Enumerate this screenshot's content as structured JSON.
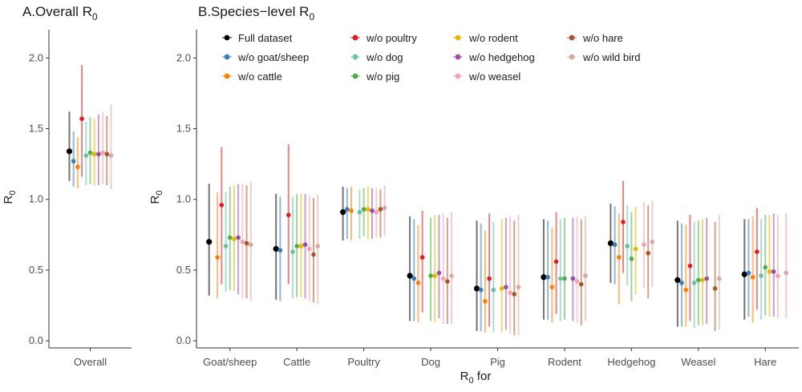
{
  "chart_data": [
    {
      "type": "pointrange",
      "panel": "A",
      "title": "A.Overall R",
      "title_sub": "0",
      "ylabel": "R",
      "ylabel_sub": "0",
      "xlabel": "",
      "ylim": [
        -0.05,
        2.2
      ],
      "yticks": [
        "0.0",
        "0.5",
        "1.0",
        "1.5",
        "2.0"
      ],
      "ytick_values": [
        0.0,
        0.5,
        1.0,
        1.5,
        2.0
      ],
      "categories": [
        "Overall"
      ],
      "grid": false,
      "series": [
        {
          "name": "Full dataset",
          "color": "#000000",
          "values": [
            [
              1.34,
              1.13,
              1.62
            ]
          ]
        },
        {
          "name": "w/o goat/sheep",
          "color": "#377EB8",
          "values": [
            [
              1.27,
              1.09,
              1.48
            ]
          ]
        },
        {
          "name": "w/o cattle",
          "color": "#FF7F00",
          "values": [
            [
              1.23,
              1.08,
              1.44
            ]
          ]
        },
        {
          "name": "w/o poultry",
          "color": "#E41A1C",
          "values": [
            [
              1.57,
              1.16,
              1.95
            ]
          ]
        },
        {
          "name": "w/o dog",
          "color": "#66C2A5",
          "values": [
            [
              1.31,
              1.1,
              1.55
            ]
          ]
        },
        {
          "name": "w/o pig",
          "color": "#4DAF4A",
          "values": [
            [
              1.33,
              1.11,
              1.58
            ]
          ]
        },
        {
          "name": "w/o rodent",
          "color": "#E6B800",
          "values": [
            [
              1.32,
              1.1,
              1.57
            ]
          ]
        },
        {
          "name": "w/o hedgehog",
          "color": "#984EA3",
          "values": [
            [
              1.32,
              1.1,
              1.6
            ]
          ]
        },
        {
          "name": "w/o weasel",
          "color": "#F4A0B0",
          "values": [
            [
              1.33,
              1.11,
              1.62
            ]
          ]
        },
        {
          "name": "w/o hare",
          "color": "#A65628",
          "values": [
            [
              1.32,
              1.1,
              1.59
            ]
          ]
        },
        {
          "name": "w/o wild bird",
          "color": "#D9A8A0",
          "values": [
            [
              1.31,
              1.07,
              1.67
            ]
          ]
        }
      ]
    },
    {
      "type": "pointrange",
      "panel": "B",
      "title": "B.Species−level R",
      "title_sub": "0",
      "ylabel": "R",
      "ylabel_sub": "0",
      "xlabel": "R",
      "xlabel_sub": "0",
      "xlabel_tail": " for",
      "ylim": [
        -0.05,
        2.2
      ],
      "yticks": [
        "0.0",
        "0.5",
        "1.0",
        "1.5",
        "2.0"
      ],
      "ytick_values": [
        0.0,
        0.5,
        1.0,
        1.5,
        2.0
      ],
      "categories": [
        "Goat/sheep",
        "Cattle",
        "Poultry",
        "Dog",
        "Pig",
        "Rodent",
        "Hedgehog",
        "Weasel",
        "Hare"
      ],
      "grid": false,
      "legend_position": "top-left",
      "series": [
        {
          "name": "Full dataset",
          "color": "#000000",
          "values": [
            [
              0.7,
              0.32,
              1.11
            ],
            [
              0.65,
              0.29,
              1.04
            ],
            [
              0.91,
              0.71,
              1.09
            ],
            [
              0.46,
              0.14,
              0.88
            ],
            [
              0.37,
              0.07,
              0.85
            ],
            [
              0.45,
              0.15,
              0.86
            ],
            [
              0.69,
              0.41,
              0.97
            ],
            [
              0.43,
              0.1,
              0.85
            ],
            [
              0.47,
              0.15,
              0.86
            ]
          ]
        },
        {
          "name": "w/o goat/sheep",
          "color": "#377EB8",
          "values": [
            [
              null,
              null,
              null
            ],
            [
              0.64,
              0.28,
              1.02
            ],
            [
              0.93,
              0.72,
              1.08
            ],
            [
              0.44,
              0.14,
              0.86
            ],
            [
              0.36,
              0.07,
              0.83
            ],
            [
              0.45,
              0.15,
              0.85
            ],
            [
              0.68,
              0.4,
              0.95
            ],
            [
              0.41,
              0.1,
              0.83
            ],
            [
              0.48,
              0.17,
              0.86
            ]
          ]
        },
        {
          "name": "w/o cattle",
          "color": "#FF7F00",
          "values": [
            [
              0.59,
              0.3,
              1.05
            ],
            [
              null,
              null,
              null
            ],
            [
              0.92,
              0.71,
              1.09
            ],
            [
              0.41,
              0.13,
              0.82
            ],
            [
              0.28,
              0.06,
              0.78
            ],
            [
              0.38,
              0.13,
              0.8
            ],
            [
              0.59,
              0.26,
              0.9
            ],
            [
              0.36,
              0.1,
              0.82
            ],
            [
              0.45,
              0.13,
              0.88
            ]
          ]
        },
        {
          "name": "w/o poultry",
          "color": "#E41A1C",
          "values": [
            [
              0.96,
              0.4,
              1.37
            ],
            [
              0.89,
              0.4,
              1.39
            ],
            [
              null,
              null,
              null
            ],
            [
              0.59,
              0.2,
              0.92
            ],
            [
              0.44,
              0.1,
              0.9
            ],
            [
              0.56,
              0.19,
              0.91
            ],
            [
              0.84,
              0.48,
              1.13
            ],
            [
              0.53,
              0.14,
              0.89
            ],
            [
              0.63,
              0.22,
              0.94
            ]
          ]
        },
        {
          "name": "w/o dog",
          "color": "#66C2A5",
          "values": [
            [
              0.67,
              0.35,
              1.05
            ],
            [
              0.63,
              0.3,
              1.02
            ],
            [
              0.91,
              0.72,
              1.07
            ],
            [
              null,
              null,
              null
            ],
            [
              0.36,
              0.06,
              0.84
            ],
            [
              0.44,
              0.14,
              0.86
            ],
            [
              0.67,
              0.39,
              0.96
            ],
            [
              0.41,
              0.09,
              0.84
            ],
            [
              0.46,
              0.15,
              0.86
            ]
          ]
        },
        {
          "name": "w/o pig",
          "color": "#4DAF4A",
          "values": [
            [
              0.73,
              0.36,
              1.09
            ],
            [
              0.67,
              0.31,
              1.04
            ],
            [
              0.93,
              0.74,
              1.08
            ],
            [
              0.46,
              0.14,
              0.87
            ],
            [
              null,
              null,
              null
            ],
            [
              0.44,
              0.15,
              0.87
            ],
            [
              0.58,
              0.28,
              0.91
            ],
            [
              0.43,
              0.11,
              0.85
            ],
            [
              0.52,
              0.18,
              0.89
            ]
          ]
        },
        {
          "name": "w/o rodent",
          "color": "#E6B800",
          "values": [
            [
              0.72,
              0.35,
              1.1
            ],
            [
              0.67,
              0.31,
              1.04
            ],
            [
              0.93,
              0.72,
              1.09
            ],
            [
              0.46,
              0.13,
              0.89
            ],
            [
              0.37,
              0.06,
              0.86
            ],
            [
              null,
              null,
              null
            ],
            [
              0.65,
              0.33,
              0.95
            ],
            [
              0.43,
              0.11,
              0.86
            ],
            [
              0.49,
              0.17,
              0.89
            ]
          ]
        },
        {
          "name": "w/o hedgehog",
          "color": "#984EA3",
          "values": [
            [
              0.73,
              0.33,
              1.11
            ],
            [
              0.68,
              0.3,
              1.04
            ],
            [
              0.92,
              0.72,
              1.08
            ],
            [
              0.48,
              0.16,
              0.89
            ],
            [
              0.38,
              0.08,
              0.87
            ],
            [
              0.44,
              0.14,
              0.87
            ],
            [
              null,
              null,
              null
            ],
            [
              0.44,
              0.12,
              0.87
            ],
            [
              0.49,
              0.17,
              0.9
            ]
          ]
        },
        {
          "name": "w/o weasel",
          "color": "#F4A0B0",
          "values": [
            [
              0.7,
              0.3,
              1.11
            ],
            [
              0.65,
              0.28,
              1.03
            ],
            [
              0.91,
              0.73,
              1.08
            ],
            [
              0.44,
              0.12,
              0.9
            ],
            [
              0.34,
              0.05,
              0.88
            ],
            [
              0.42,
              0.13,
              0.88
            ],
            [
              0.68,
              0.37,
              0.98
            ],
            [
              null,
              null,
              null
            ],
            [
              0.46,
              0.16,
              0.89
            ]
          ]
        },
        {
          "name": "w/o hare",
          "color": "#A65628",
          "values": [
            [
              0.69,
              0.3,
              1.1
            ],
            [
              0.61,
              0.27,
              1.01
            ],
            [
              0.93,
              0.73,
              1.07
            ],
            [
              0.42,
              0.12,
              0.87
            ],
            [
              0.33,
              0.04,
              0.85
            ],
            [
              0.4,
              0.11,
              0.86
            ],
            [
              0.62,
              0.3,
              0.96
            ],
            [
              0.37,
              0.07,
              0.84
            ],
            [
              null,
              null,
              null
            ]
          ]
        },
        {
          "name": "w/o wild bird",
          "color": "#D9A8A0",
          "values": [
            [
              0.68,
              0.28,
              1.12
            ],
            [
              0.67,
              0.26,
              1.03
            ],
            [
              0.94,
              0.74,
              1.1
            ],
            [
              0.46,
              0.12,
              0.91
            ],
            [
              0.38,
              0.04,
              0.89
            ],
            [
              0.46,
              0.14,
              0.88
            ],
            [
              0.7,
              0.38,
              0.99
            ],
            [
              0.44,
              0.08,
              0.89
            ],
            [
              0.48,
              0.16,
              0.9
            ]
          ]
        }
      ]
    }
  ]
}
